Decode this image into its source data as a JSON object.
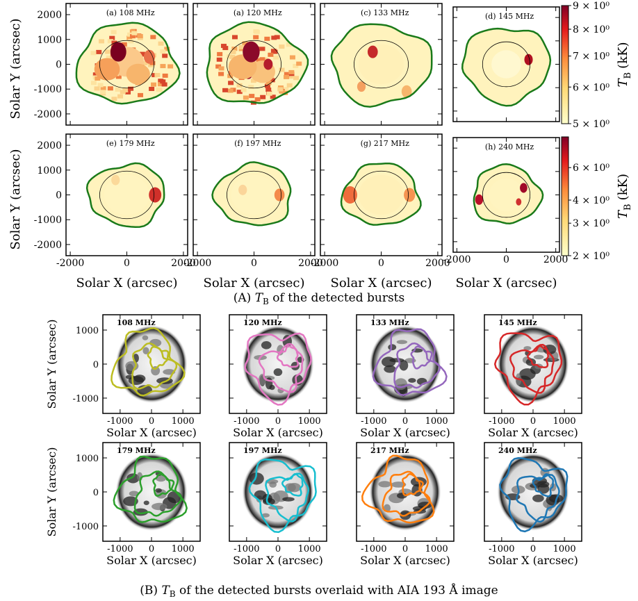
{
  "panel_a": {
    "xlabel": "Solar X (arcsec)",
    "ylabel": "Solar Y (arcsec)",
    "xlim": [
      -2150,
      2150
    ],
    "ylim": [
      -2450,
      2450
    ],
    "xticks": [
      -2000,
      0,
      2000
    ],
    "yticks": [
      -2000,
      -1000,
      0,
      1000,
      2000
    ],
    "plots": [
      "(a) 108 MHz",
      "(a) 120 MHz",
      "(c) 133 MHz",
      "(d) 145 MHz",
      "(e) 179 MHz",
      "(f) 197 MHz",
      "(g) 217 MHz",
      "(h) 240 MHz"
    ],
    "colorbars": [
      {
        "symbol": "T",
        "subscript": "B",
        "unit": "(kK)",
        "log": true,
        "lim": [
          5,
          9
        ],
        "ticks": [
          {
            "value": 5,
            "label": "5 × 10⁰"
          },
          {
            "value": 6,
            "label": "6 × 10⁰"
          },
          {
            "value": 7,
            "label": "7 × 10⁰"
          },
          {
            "value": 8,
            "label": "8 × 10⁰"
          },
          {
            "value": 9,
            "label": "9 × 10⁰"
          }
        ]
      },
      {
        "symbol": "T",
        "subscript": "B",
        "unit": "(kK)",
        "log": true,
        "lim": [
          2,
          8.8
        ],
        "ticks": [
          {
            "value": 2,
            "label": "2 × 10⁰"
          },
          {
            "value": 3,
            "label": "3 × 10⁰"
          },
          {
            "value": 4,
            "label": "4 × 10⁰"
          },
          {
            "value": 6,
            "label": "6 × 10⁰"
          }
        ]
      }
    ],
    "caption": {
      "prefix": "(A)",
      "symbol": "T",
      "subscript": "B",
      "text": "of the detected bursts"
    }
  },
  "panel_b": {
    "xlabel": "Solar X (arcsec)",
    "ylabel": "Solar Y (arcsec)",
    "xlim": [
      -1550,
      1550
    ],
    "ylim": [
      -1450,
      1450
    ],
    "xticks": [
      -1000,
      0,
      1000
    ],
    "yticks": [
      -1000,
      0,
      1000
    ],
    "plots": [
      {
        "label": "108 MHz",
        "color": "#bcbd22"
      },
      {
        "label": "120 MHz",
        "color": "#e377c2"
      },
      {
        "label": "133 MHz",
        "color": "#9467bd"
      },
      {
        "label": "145 MHz",
        "color": "#d62728"
      },
      {
        "label": "179 MHz",
        "color": "#2ca02c"
      },
      {
        "label": "197 MHz",
        "color": "#17becf"
      },
      {
        "label": "217 MHz",
        "color": "#ff7f0e"
      },
      {
        "label": "240 MHz",
        "color": "#1f77b4"
      }
    ],
    "caption": {
      "prefix": "(B)",
      "symbol": "T",
      "subscript": "B",
      "text": "of the detected bursts overlaid with AIA 193 Å image"
    }
  }
}
